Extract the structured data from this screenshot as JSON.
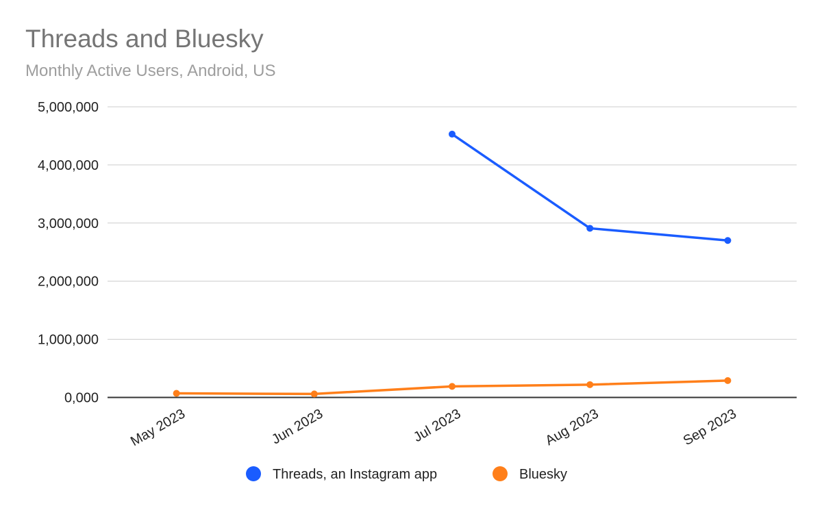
{
  "chart_data": {
    "type": "line",
    "title": "Threads and Bluesky",
    "subtitle": "Monthly Active Users, Android, US",
    "categories": [
      "May 2023",
      "Jun 2023",
      "Jul 2023",
      "Aug 2023",
      "Sep 2023"
    ],
    "series": [
      {
        "name": "Threads, an Instagram app",
        "color": "#1a5cff",
        "values": [
          null,
          null,
          4530000,
          2910000,
          2700000
        ]
      },
      {
        "name": "Bluesky",
        "color": "#ff7f1a",
        "values": [
          70000,
          60000,
          190000,
          220000,
          290000
        ]
      }
    ],
    "ylim": [
      0,
      5000000
    ],
    "yticks": [
      0,
      1000000,
      2000000,
      3000000,
      4000000,
      5000000
    ],
    "ytick_labels": [
      "0,000",
      "1,000,000",
      "2,000,000",
      "3,000,000",
      "4,000,000",
      "5,000,000"
    ],
    "grid": true,
    "legend": "bottom"
  }
}
